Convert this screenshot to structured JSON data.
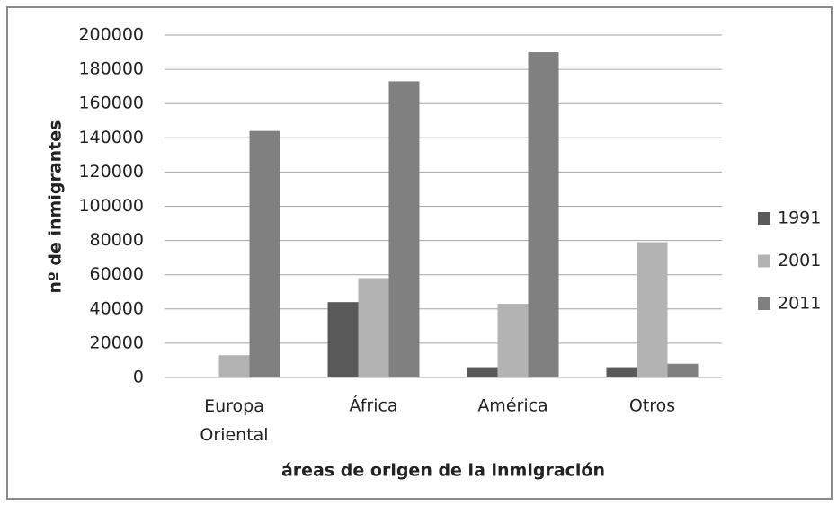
{
  "chart_data": {
    "type": "bar",
    "x_label": "áreas de origen de la inmigración",
    "y_label": "nº de inmigrantes",
    "categories": [
      "Europa Oriental",
      "África",
      "América",
      "Otros"
    ],
    "series": [
      {
        "name": "1991",
        "color": "#595959",
        "values": [
          0,
          44000,
          6000,
          6000
        ]
      },
      {
        "name": "2001",
        "color": "#b3b3b3",
        "values": [
          13000,
          58000,
          43000,
          79000
        ]
      },
      {
        "name": "2011",
        "color": "#808080",
        "values": [
          144000,
          173000,
          190000,
          8000
        ]
      }
    ],
    "ylim": [
      0,
      200000
    ],
    "yticks": [
      0,
      20000,
      40000,
      60000,
      80000,
      100000,
      120000,
      140000,
      160000,
      180000,
      200000
    ],
    "grid": true,
    "legend": "right"
  }
}
